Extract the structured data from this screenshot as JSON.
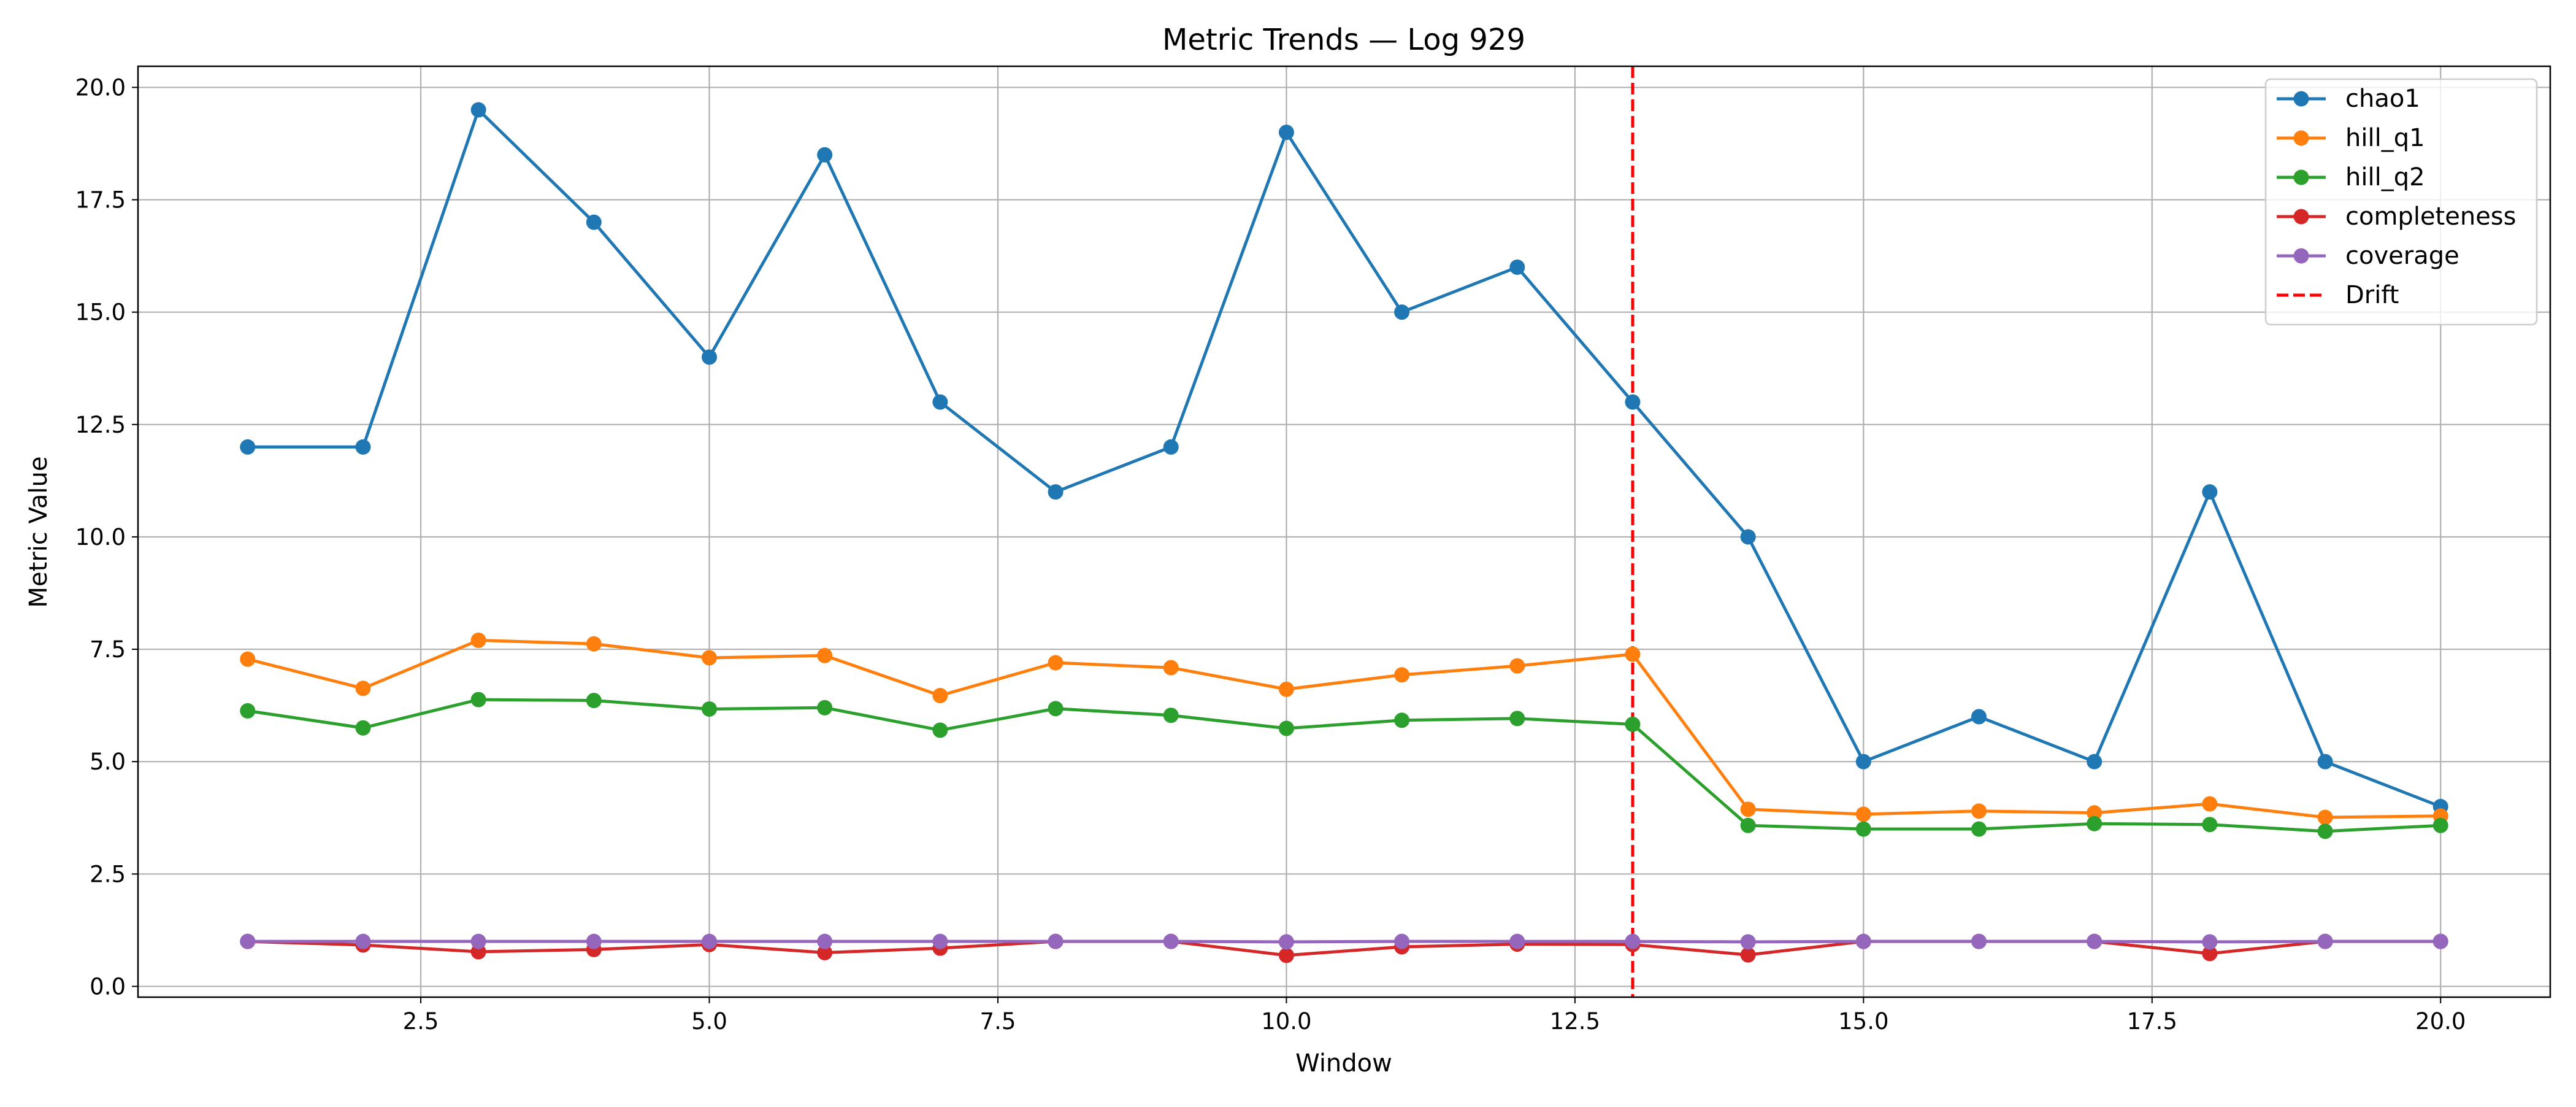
{
  "chart_data": {
    "type": "line",
    "title": "Metric Trends — Log 929",
    "xlabel": "Window",
    "ylabel": "Metric Value",
    "xlim": [
      0.05,
      20.95
    ],
    "ylim": [
      -0.24,
      20.47
    ],
    "xticks": [
      2.5,
      5.0,
      7.5,
      10.0,
      12.5,
      15.0,
      17.5,
      20.0
    ],
    "xtick_labels": [
      "2.5",
      "5.0",
      "7.5",
      "10.0",
      "12.5",
      "15.0",
      "17.5",
      "20.0"
    ],
    "yticks": [
      0.0,
      2.5,
      5.0,
      7.5,
      10.0,
      12.5,
      15.0,
      17.5,
      20.0
    ],
    "ytick_labels": [
      "0.0",
      "2.5",
      "5.0",
      "7.5",
      "10.0",
      "12.5",
      "15.0",
      "17.5",
      "20.0"
    ],
    "grid": true,
    "legend_position": "top-right",
    "x": [
      1,
      2,
      3,
      4,
      5,
      6,
      7,
      8,
      9,
      10,
      11,
      12,
      13,
      14,
      15,
      16,
      17,
      18,
      19,
      20
    ],
    "series": [
      {
        "name": "chao1",
        "color": "#1f77b4",
        "values": [
          12,
          12,
          19.5,
          17,
          14,
          18.5,
          13,
          11,
          12,
          19,
          15,
          16,
          13,
          10,
          5,
          6,
          5,
          11,
          5,
          4
        ]
      },
      {
        "name": "hill_q1",
        "color": "#ff7f0e",
        "values": [
          7.28,
          6.63,
          7.7,
          7.62,
          7.31,
          7.36,
          6.47,
          7.2,
          7.09,
          6.61,
          6.93,
          7.13,
          7.39,
          3.94,
          3.83,
          3.9,
          3.86,
          4.06,
          3.76,
          3.79
        ]
      },
      {
        "name": "hill_q2",
        "color": "#2ca02c",
        "values": [
          6.13,
          5.75,
          6.38,
          6.36,
          6.17,
          6.2,
          5.7,
          6.18,
          6.03,
          5.74,
          5.92,
          5.96,
          5.83,
          3.58,
          3.5,
          3.5,
          3.62,
          3.6,
          3.45,
          3.58
        ]
      },
      {
        "name": "completeness",
        "color": "#d62728",
        "values": [
          1.0,
          0.92,
          0.77,
          0.82,
          0.93,
          0.75,
          0.85,
          1.0,
          1.0,
          0.69,
          0.88,
          0.94,
          0.93,
          0.7,
          1.0,
          1.0,
          1.0,
          0.73,
          1.0,
          1.0
        ]
      },
      {
        "name": "coverage",
        "color": "#9467bd",
        "values": [
          1.0,
          1.0,
          1.0,
          1.0,
          1.0,
          1.0,
          1.0,
          1.0,
          1.0,
          0.99,
          1.0,
          1.0,
          1.0,
          0.99,
          1.0,
          1.0,
          1.0,
          0.99,
          1.0,
          1.0
        ]
      }
    ],
    "drift_line": {
      "name": "Drift",
      "x": 13,
      "color": "#ff0000",
      "style": "dashed"
    }
  }
}
